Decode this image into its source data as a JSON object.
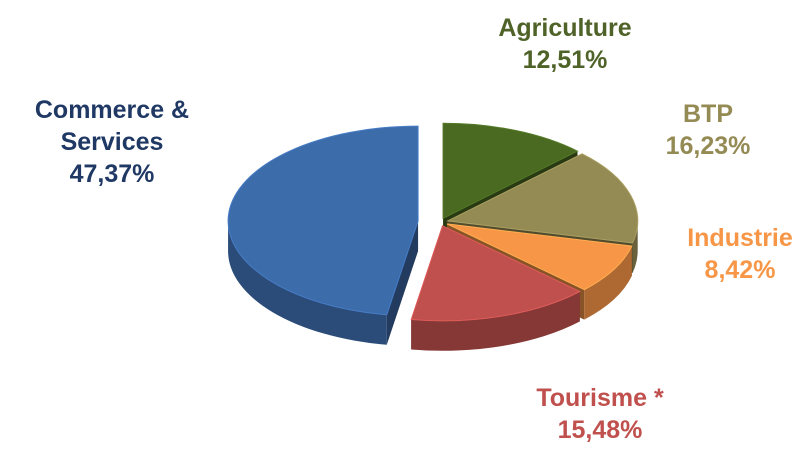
{
  "chart_data": {
    "type": "pie",
    "categories": [
      "Agriculture",
      "BTP",
      "Industrie",
      "Tourisme *",
      "Commerce & Services"
    ],
    "values": [
      12.51,
      16.23,
      8.42,
      15.48,
      47.37
    ],
    "value_labels": [
      "12,51%",
      "16,23%",
      "8,42%",
      "15,48%",
      "47,37%"
    ],
    "colors": [
      "#4a6a22",
      "#948a54",
      "#f79646",
      "#c0504d",
      "#3d6cab"
    ],
    "label_colors": [
      "#4f6228",
      "#948a54",
      "#f79646",
      "#c0504d",
      "#1f3864"
    ]
  }
}
